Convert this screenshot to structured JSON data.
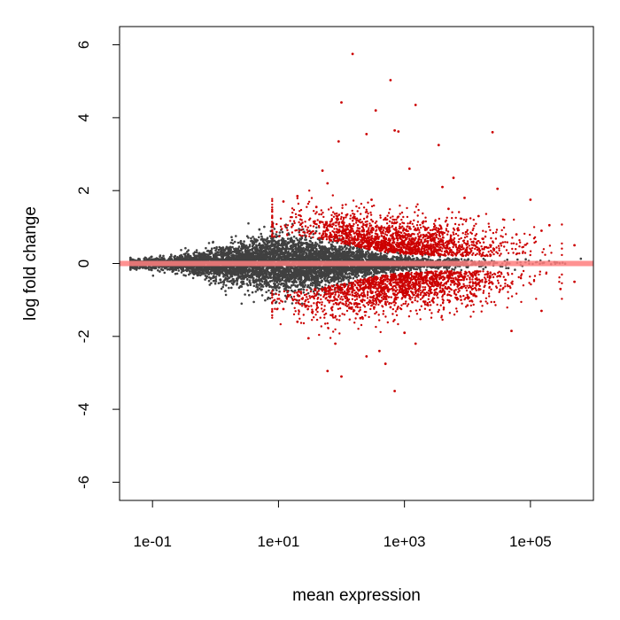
{
  "chart_data": {
    "type": "scatter",
    "title": "",
    "xlabel": "mean expression",
    "ylabel": "log fold change",
    "x_scale": "log10",
    "xlim": [
      0.03,
      1000000
    ],
    "ylim": [
      -6.5,
      6.5
    ],
    "x_ticks": [
      0.1,
      10,
      1000,
      100000
    ],
    "x_tick_labels": [
      "1e-01",
      "1e+01",
      "1e+03",
      "1e+05"
    ],
    "y_ticks": [
      -6,
      -4,
      -2,
      0,
      2,
      4,
      6
    ],
    "y_tick_labels": [
      "-6",
      "-4",
      "-2",
      "0",
      "2",
      "4",
      "6"
    ],
    "grid": false,
    "reference_line": {
      "y": 0
    },
    "colors": {
      "not_significant": "#404040",
      "significant": "#cc0000",
      "reference_line": "#ff7f7f"
    },
    "series": [
      {
        "points": [
          [
            150,
            5.75
          ],
          [
            100,
            4.42
          ],
          [
            600,
            5.03
          ],
          [
            1500,
            4.35
          ],
          [
            350,
            4.2
          ],
          [
            250,
            3.55
          ],
          [
            700,
            3.65
          ],
          [
            800,
            3.62
          ],
          [
            3500,
            3.25
          ],
          [
            25000,
            3.6
          ],
          [
            90,
            3.35
          ],
          [
            50,
            2.55
          ],
          [
            30000,
            2.05
          ],
          [
            100000,
            1.75
          ],
          [
            200000,
            1.05
          ],
          [
            500000,
            0.5
          ],
          [
            20,
            1.85
          ],
          [
            12,
            1.7
          ],
          [
            1200,
            2.6
          ],
          [
            6000,
            2.35
          ],
          [
            60,
            2.2
          ],
          [
            4000,
            2.1
          ],
          [
            9000,
            1.8
          ],
          [
            300,
            1.75
          ],
          [
            40,
            1.55
          ],
          [
            5000,
            1.5
          ],
          [
            15000,
            1.3
          ],
          [
            150000,
            0.9
          ],
          [
            60000,
            0.8
          ],
          [
            3000,
            0.7
          ],
          [
            800,
            0.55
          ],
          [
            120,
            0.75
          ],
          [
            2000,
            1.15
          ],
          [
            700,
            -3.5
          ],
          [
            100,
            -3.1
          ],
          [
            60,
            -2.95
          ],
          [
            500,
            -2.75
          ],
          [
            250,
            -2.55
          ],
          [
            30,
            -2.05
          ],
          [
            400,
            -2.4
          ],
          [
            1500,
            -2.2
          ],
          [
            50000,
            -1.85
          ],
          [
            150000,
            -1.3
          ],
          [
            20,
            -1.6
          ],
          [
            1000,
            -1.9
          ],
          [
            300000,
            -0.7
          ],
          [
            10000,
            -1.15
          ],
          [
            3000,
            -0.85
          ],
          [
            200,
            -1.5
          ],
          [
            12,
            -1.25
          ],
          [
            5000,
            -0.65
          ],
          [
            600,
            -1.2
          ],
          [
            80,
            -2.2
          ],
          [
            40000,
            -0.45
          ],
          [
            25000,
            -0.55
          ],
          [
            2000,
            -0.9
          ],
          [
            500000,
            -0.5
          ]
        ]
      }
    ]
  }
}
